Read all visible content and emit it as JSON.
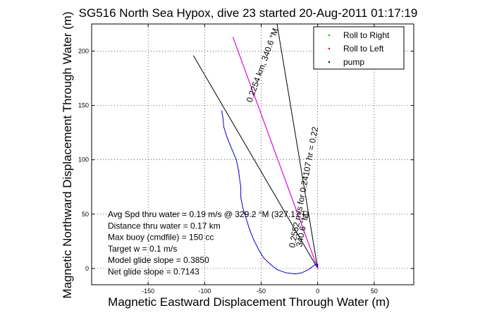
{
  "chart_data": {
    "type": "line",
    "title": "SG516 North Sea Hypox, dive 23 started 20-Aug-2011 01:17:19",
    "xlabel": "Magnetic Eastward Displacement Through Water (m)",
    "ylabel": "Magnetic Northward Displacement Through Water (m)",
    "xlim": [
      -200,
      85
    ],
    "ylim": [
      -15,
      225
    ],
    "xticks": [
      -150,
      -100,
      -50,
      0,
      50
    ],
    "yticks": [
      0,
      50,
      100,
      150,
      200
    ],
    "grid": true,
    "legend_position": "top-right",
    "legend": [
      {
        "label": "Roll to Right",
        "color": "#00c000",
        "marker": "dot"
      },
      {
        "label": "Roll to Left",
        "color": "#ff0000",
        "marker": "dot"
      },
      {
        "label": "pump",
        "color": "#000000",
        "marker": "dot"
      }
    ],
    "series": [
      {
        "role": "track",
        "color": "#0000c8",
        "x": [
          -85,
          -84,
          -83,
          -80,
          -76,
          -72,
          -70,
          -69,
          -68,
          -68,
          -66,
          -63,
          -60,
          -56,
          -52,
          -48,
          -42,
          -36,
          -28,
          -20,
          -14,
          -8,
          -3,
          0,
          0
        ],
        "y": [
          145,
          140,
          130,
          120,
          110,
          100,
          90,
          82,
          75,
          65,
          55,
          45,
          35,
          25,
          17,
          10,
          4,
          -1,
          -4,
          -5,
          -4,
          -1,
          3,
          4,
          0
        ]
      },
      {
        "role": "predicted-path",
        "color": "#ff00ff",
        "x": [
          -75,
          0
        ],
        "y": [
          213,
          0
        ]
      }
    ],
    "reference_lines": [
      {
        "label": "0.2254 km, 340.6 °M",
        "color": "#000000",
        "x": [
          -75,
          0
        ],
        "y": [
          213,
          0
        ]
      },
      {
        "label": "",
        "color": "#000000",
        "x": [
          -110,
          0
        ],
        "y": [
          196,
          0
        ]
      },
      {
        "label": "",
        "color": "#000000",
        "x": [
          -36,
          0
        ],
        "y": [
          225,
          0
        ]
      }
    ],
    "annotations": [
      {
        "text": "Avg Spd thru water =  0.19 m/s @ 329.2 °M (327.1 °T)"
      },
      {
        "text": "Distance thru water =  0.17 km"
      },
      {
        "text": "Max buoy (cmdfile) = 150 cc"
      },
      {
        "text": "Target w = 0.1 m/s"
      },
      {
        "text": "Model glide slope = 0.3850"
      },
      {
        "text": "Net glide slope = 0.7143"
      }
    ],
    "line_labels": [
      {
        "text": "0.2254 km, 340.6 °M"
      },
      {
        "text": "0.2552 m/s for 0.24107 hr = 0.22"
      },
      {
        "text": "340.6 °M"
      }
    ]
  }
}
